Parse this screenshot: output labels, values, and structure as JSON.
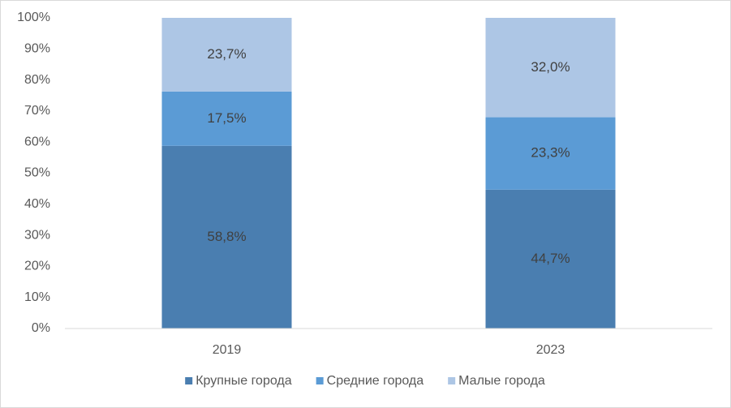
{
  "chart_data": {
    "type": "stacked_bar",
    "categories": [
      "2019",
      "2023"
    ],
    "series": [
      {
        "name": "Крупные города",
        "color": "#4a7eb0",
        "values": [
          58.8,
          44.7
        ],
        "value_labels": [
          "58,8%",
          "44,7%"
        ]
      },
      {
        "name": "Средние города",
        "color": "#5b9bd5",
        "values": [
          17.5,
          23.3
        ],
        "value_labels": [
          "17,5%",
          "23,3%"
        ]
      },
      {
        "name": "Малые города",
        "color": "#adc6e5",
        "values": [
          23.7,
          32.0
        ],
        "value_labels": [
          "23,7%",
          "32,0%"
        ]
      }
    ],
    "ylim": [
      0,
      100
    ],
    "yticks": [
      {
        "value": 0,
        "label": "0%"
      },
      {
        "value": 10,
        "label": "10%"
      },
      {
        "value": 20,
        "label": "20%"
      },
      {
        "value": 30,
        "label": "30%"
      },
      {
        "value": 40,
        "label": "40%"
      },
      {
        "value": 50,
        "label": "50%"
      },
      {
        "value": 60,
        "label": "60%"
      },
      {
        "value": 70,
        "label": "70%"
      },
      {
        "value": 80,
        "label": "80%"
      },
      {
        "value": 90,
        "label": "90%"
      },
      {
        "value": 100,
        "label": "100%"
      }
    ],
    "grid": false,
    "legend": "bottom"
  }
}
